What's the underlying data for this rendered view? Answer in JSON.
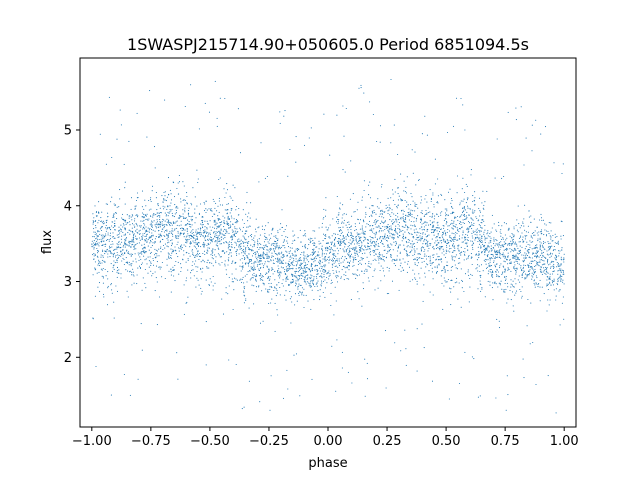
{
  "chart_data": {
    "type": "scatter",
    "title": "1SWASPJ215714.90+050605.0 Period 6851094.5s",
    "xlabel": "phase",
    "ylabel": "flux",
    "xlim": [
      -1.05,
      1.05
    ],
    "ylim": [
      1.08,
      5.95
    ],
    "x_ticks": [
      -1.0,
      -0.75,
      -0.5,
      -0.25,
      0.0,
      0.25,
      0.5,
      0.75,
      1.0
    ],
    "x_tick_labels": [
      "−1.00",
      "−0.75",
      "−0.50",
      "−0.25",
      "0.00",
      "0.25",
      "0.50",
      "0.75",
      "1.00"
    ],
    "y_ticks": [
      2,
      3,
      4,
      5
    ],
    "y_tick_labels": [
      "2",
      "3",
      "4",
      "5"
    ],
    "grid": false,
    "legend": "none",
    "marker_color": "#1f77b4",
    "series": [
      {
        "x": [
          -1.0,
          -0.95,
          -0.9,
          -0.85,
          -0.8,
          -0.75,
          -0.7,
          -0.65,
          -0.6,
          -0.55,
          -0.5,
          -0.45,
          -0.4,
          -0.35,
          -0.3,
          -0.25,
          -0.2,
          -0.15,
          -0.1,
          -0.05,
          0.0,
          0.05,
          0.1,
          0.15,
          0.2,
          0.25,
          0.3,
          0.35,
          0.4,
          0.45,
          0.5,
          0.55,
          0.6,
          0.65,
          0.7,
          0.75,
          0.8,
          0.85,
          0.9,
          0.95,
          1.0
        ],
        "y": [
          3.55,
          3.5,
          3.45,
          3.5,
          3.55,
          3.6,
          3.65,
          3.65,
          3.6,
          3.55,
          3.55,
          3.6,
          3.55,
          3.35,
          3.3,
          3.3,
          3.25,
          3.2,
          3.15,
          3.2,
          3.35,
          3.45,
          3.45,
          3.5,
          3.55,
          3.6,
          3.65,
          3.65,
          3.6,
          3.55,
          3.5,
          3.6,
          3.65,
          3.5,
          3.35,
          3.3,
          3.3,
          3.35,
          3.3,
          3.25,
          3.2
        ],
        "spread": [
          0.45,
          0.5,
          0.5,
          0.45,
          0.5,
          0.5,
          0.55,
          0.55,
          0.5,
          0.5,
          0.45,
          0.5,
          0.5,
          0.5,
          0.45,
          0.45,
          0.45,
          0.4,
          0.4,
          0.4,
          0.45,
          0.45,
          0.45,
          0.5,
          0.5,
          0.5,
          0.55,
          0.55,
          0.5,
          0.5,
          0.5,
          0.55,
          0.55,
          0.5,
          0.45,
          0.45,
          0.45,
          0.5,
          0.45,
          0.45,
          0.45
        ],
        "marker": "point"
      }
    ]
  }
}
